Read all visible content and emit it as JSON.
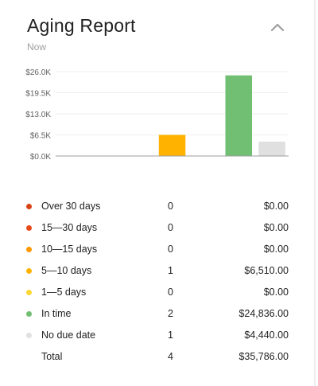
{
  "header": {
    "title": "Aging Report",
    "subtitle": "Now",
    "collapse_icon": "chevron-up-icon"
  },
  "chart_data": {
    "type": "bar",
    "categories": [
      "Over 30 days",
      "15—30 days",
      "10—15 days",
      "5—10 days",
      "1—5 days",
      "In time",
      "No due date"
    ],
    "values": [
      0,
      0,
      0,
      6510,
      0,
      24836,
      4440
    ],
    "colors": [
      "#d84315",
      "#e64a19",
      "#ff9800",
      "#ffb300",
      "#fdd835",
      "#71bf73",
      "#e0e0e0"
    ],
    "ylim": [
      0,
      26000
    ],
    "yticks": [
      0,
      6500,
      13000,
      19500,
      26000
    ],
    "ytick_labels": [
      "$0.0K",
      "$6.5K",
      "$13.0K",
      "$19.5K",
      "$26.0K"
    ],
    "grid": true,
    "legend": "bottom"
  },
  "legend": {
    "rows": [
      {
        "label": "Over 30 days",
        "count": "0",
        "amount": "$0.00",
        "color": "#d84315"
      },
      {
        "label": "15—30 days",
        "count": "0",
        "amount": "$0.00",
        "color": "#e64a19"
      },
      {
        "label": "10—15 days",
        "count": "0",
        "amount": "$0.00",
        "color": "#ff9800"
      },
      {
        "label": "5—10 days",
        "count": "1",
        "amount": "$6,510.00",
        "color": "#ffb300"
      },
      {
        "label": "1—5 days",
        "count": "0",
        "amount": "$0.00",
        "color": "#fdd835"
      },
      {
        "label": "In time",
        "count": "2",
        "amount": "$24,836.00",
        "color": "#71bf73"
      },
      {
        "label": "No due date",
        "count": "1",
        "amount": "$4,440.00",
        "color": "#e0e0e0"
      }
    ],
    "total": {
      "label": "Total",
      "count": "4",
      "amount": "$35,786.00"
    }
  }
}
